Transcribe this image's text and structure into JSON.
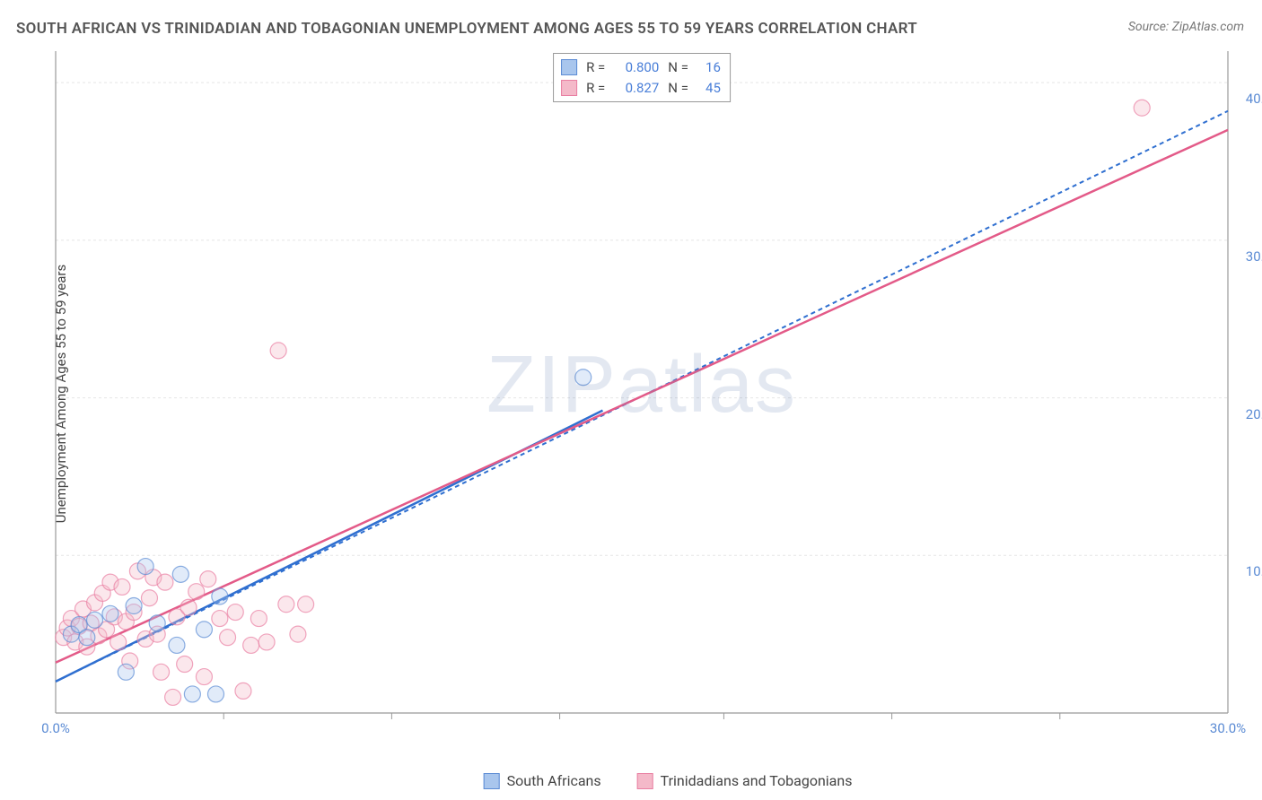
{
  "title": "SOUTH AFRICAN VS TRINIDADIAN AND TOBAGONIAN UNEMPLOYMENT AMONG AGES 55 TO 59 YEARS CORRELATION CHART",
  "source_label": "Source:",
  "source_value": "ZipAtlas.com",
  "y_axis_label": "Unemployment Among Ages 55 to 59 years",
  "watermark": {
    "zip": "ZIP",
    "atlas": "atlas"
  },
  "chart": {
    "type": "scatter",
    "xlim": [
      0,
      30
    ],
    "ylim": [
      0,
      42
    ],
    "x_ticks": [
      0,
      30
    ],
    "x_tick_labels": [
      "0.0%",
      "30.0%"
    ],
    "y_ticks": [
      10,
      20,
      30,
      40
    ],
    "y_tick_labels": [
      "10.0%",
      "20.0%",
      "30.0%",
      "40.0%"
    ],
    "grid_color": "#e5e5e5",
    "axis_color": "#999999",
    "background_color": "#ffffff",
    "tick_font_color": "#5b8bd4",
    "y_grid_lines": [
      10,
      20,
      30,
      40
    ],
    "x_minor_ticks": [
      4.3,
      8.6,
      12.9,
      17.1,
      21.4,
      25.7
    ],
    "marker_radius": 9,
    "marker_opacity": 0.35,
    "series": [
      {
        "name": "South Africans",
        "color_fill": "#a9c6ed",
        "color_stroke": "#5b8bd4",
        "r_value": "0.800",
        "n_value": "16",
        "trend": {
          "x1": 0,
          "y1": 2.0,
          "x2": 30,
          "y2": 38.2,
          "color": "#2f6fd0",
          "dash": "5,4",
          "width": 2
        },
        "trend_solid": {
          "x1": 0,
          "y1": 2.0,
          "x2": 14,
          "y2": 19.2,
          "color": "#2f6fd0",
          "width": 2.5
        },
        "points": [
          [
            0.4,
            5.0
          ],
          [
            0.6,
            5.6
          ],
          [
            0.8,
            4.8
          ],
          [
            1.0,
            5.9
          ],
          [
            1.4,
            6.3
          ],
          [
            1.8,
            2.6
          ],
          [
            2.0,
            6.8
          ],
          [
            2.3,
            9.3
          ],
          [
            2.6,
            5.7
          ],
          [
            3.2,
            8.8
          ],
          [
            3.1,
            4.3
          ],
          [
            3.5,
            1.2
          ],
          [
            3.8,
            5.3
          ],
          [
            4.2,
            7.4
          ],
          [
            4.1,
            1.2
          ],
          [
            13.5,
            21.3
          ]
        ]
      },
      {
        "name": "Trinidadians and Tobagonians",
        "color_fill": "#f4b9c9",
        "color_stroke": "#e97fa2",
        "r_value": "0.827",
        "n_value": "45",
        "trend": {
          "x1": 0,
          "y1": 3.2,
          "x2": 30,
          "y2": 37.0,
          "color": "#e35a88",
          "dash": "",
          "width": 2.5
        },
        "points": [
          [
            0.2,
            4.8
          ],
          [
            0.3,
            5.4
          ],
          [
            0.4,
            6.0
          ],
          [
            0.5,
            4.5
          ],
          [
            0.6,
            5.5
          ],
          [
            0.7,
            6.6
          ],
          [
            0.8,
            4.2
          ],
          [
            0.9,
            5.7
          ],
          [
            1.0,
            7.0
          ],
          [
            1.1,
            4.9
          ],
          [
            1.2,
            7.6
          ],
          [
            1.3,
            5.3
          ],
          [
            1.4,
            8.3
          ],
          [
            1.5,
            6.1
          ],
          [
            1.6,
            4.5
          ],
          [
            1.7,
            8.0
          ],
          [
            1.8,
            5.8
          ],
          [
            1.9,
            3.3
          ],
          [
            2.0,
            6.4
          ],
          [
            2.1,
            9.0
          ],
          [
            2.3,
            4.7
          ],
          [
            2.4,
            7.3
          ],
          [
            2.5,
            8.6
          ],
          [
            2.6,
            5.0
          ],
          [
            2.7,
            2.6
          ],
          [
            2.8,
            8.3
          ],
          [
            3.0,
            1.0
          ],
          [
            3.1,
            6.1
          ],
          [
            3.3,
            3.1
          ],
          [
            3.4,
            6.7
          ],
          [
            3.6,
            7.7
          ],
          [
            3.8,
            2.3
          ],
          [
            3.9,
            8.5
          ],
          [
            4.2,
            6.0
          ],
          [
            4.4,
            4.8
          ],
          [
            4.6,
            6.4
          ],
          [
            4.8,
            1.4
          ],
          [
            5.0,
            4.3
          ],
          [
            5.2,
            6.0
          ],
          [
            5.4,
            4.5
          ],
          [
            5.7,
            23.0
          ],
          [
            5.9,
            6.9
          ],
          [
            6.2,
            5.0
          ],
          [
            6.4,
            6.9
          ],
          [
            27.8,
            38.4
          ]
        ]
      }
    ]
  },
  "stats_legend": {
    "r_label": "R =",
    "n_label": "N ="
  },
  "bottom_legend": {
    "series_a": "South Africans",
    "series_b": "Trinidadians and Tobagonians"
  }
}
